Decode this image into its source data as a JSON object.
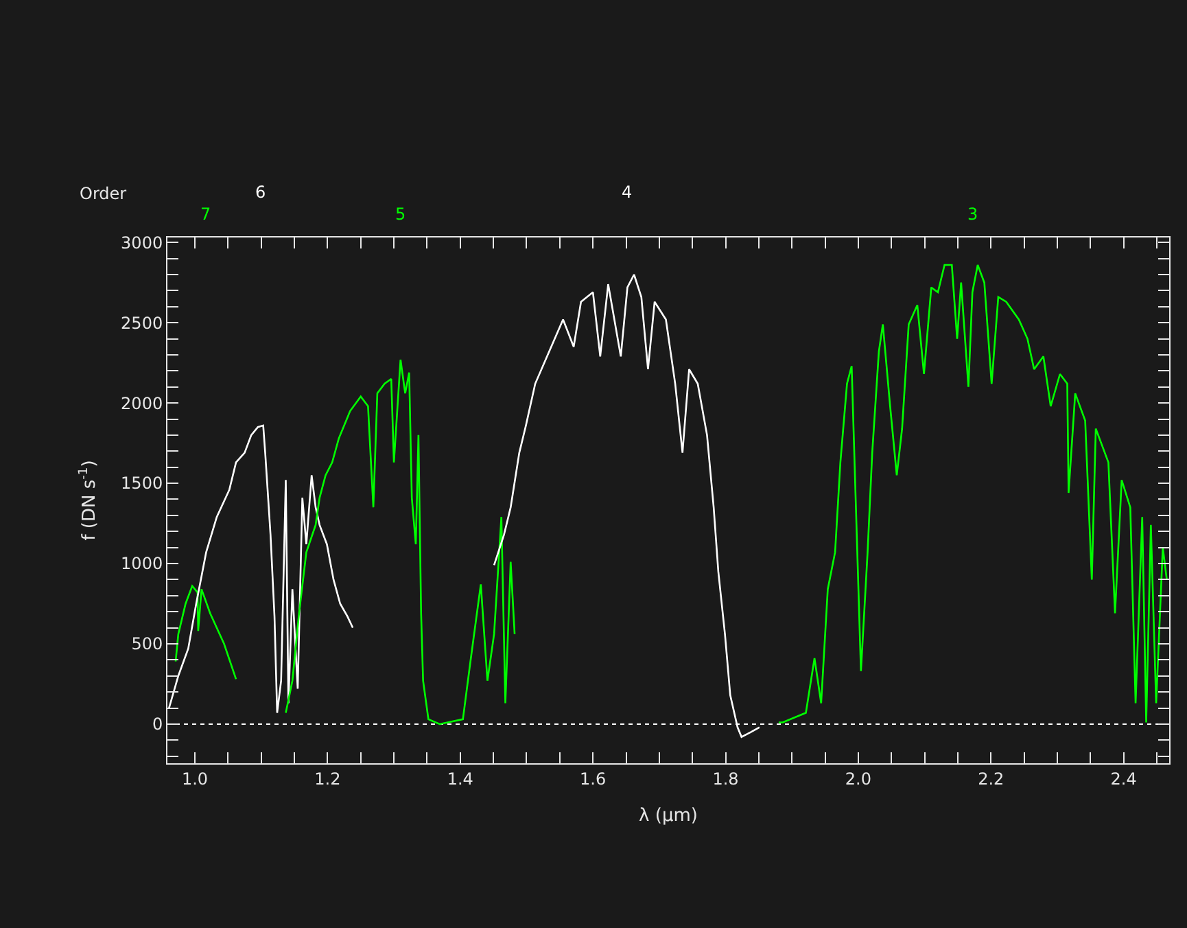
{
  "chart_data": {
    "type": "line",
    "xlabel": "λ (μm)",
    "ylabel": "f (DN s$^{-1}$)",
    "annotations": [
      "Order",
      "7",
      "6",
      "5",
      "4",
      "3"
    ],
    "series": [
      {
        "color": "#00ff00",
        "x": [
          0.971,
          0.975,
          0.986,
          0.996,
          1.004,
          1.005,
          1.01,
          1.023,
          1.044,
          1.062
        ],
        "values": [
          390,
          560,
          750,
          860,
          820,
          580,
          840,
          690,
          500,
          280
        ]
      },
      {
        "color": "#ffffff",
        "x": [
          0.961,
          0.975,
          0.99,
          1.002,
          1.017,
          1.033,
          1.052,
          1.062,
          1.075,
          1.085,
          1.095,
          1.103,
          1.106,
          1.114,
          1.12,
          1.124,
          1.13,
          1.137,
          1.141,
          1.147,
          1.155,
          1.162,
          1.168,
          1.176,
          1.182,
          1.188,
          1.199,
          1.209,
          1.219,
          1.23,
          1.238
        ],
        "values": [
          100,
          300,
          470,
          750,
          1070,
          1290,
          1460,
          1630,
          1690,
          1800,
          1850,
          1860,
          1690,
          1180,
          670,
          70,
          270,
          1520,
          130,
          840,
          220,
          1410,
          1120,
          1550,
          1350,
          1240,
          1120,
          900,
          750,
          670,
          600
        ]
      },
      {
        "color": "#00ff00",
        "x": [
          1.137,
          1.147,
          1.157,
          1.168,
          1.182,
          1.188,
          1.197,
          1.207,
          1.217,
          1.234,
          1.25,
          1.261,
          1.269,
          1.275,
          1.286,
          1.296,
          1.3,
          1.31,
          1.317,
          1.323,
          1.327,
          1.333,
          1.337,
          1.341,
          1.344,
          1.352,
          1.369,
          1.404,
          1.416,
          1.431,
          1.441,
          1.451,
          1.462,
          1.468,
          1.476,
          1.482
        ],
        "values": [
          70,
          270,
          690,
          1070,
          1240,
          1410,
          1550,
          1630,
          1780,
          1950,
          2040,
          1980,
          1350,
          2060,
          2120,
          2150,
          1630,
          2270,
          2060,
          2190,
          1410,
          1120,
          1800,
          690,
          270,
          30,
          0,
          30,
          410,
          870,
          270,
          560,
          1290,
          130,
          1010,
          560
        ]
      },
      {
        "color": "#ffffff",
        "x": [
          1.451,
          1.466,
          1.476,
          1.489,
          1.499,
          1.513,
          1.534,
          1.555,
          1.571,
          1.582,
          1.6,
          1.611,
          1.623,
          1.642,
          1.652,
          1.662,
          1.673,
          1.683,
          1.693,
          1.71,
          1.724,
          1.735,
          1.745,
          1.758,
          1.772,
          1.782,
          1.789,
          1.799,
          1.807,
          1.818,
          1.824,
          1.838,
          1.851
        ],
        "values": [
          990,
          1180,
          1350,
          1690,
          1860,
          2120,
          2320,
          2520,
          2350,
          2630,
          2690,
          2290,
          2740,
          2290,
          2720,
          2800,
          2660,
          2210,
          2630,
          2520,
          2120,
          1690,
          2210,
          2120,
          1800,
          1350,
          950,
          560,
          180,
          -20,
          -80,
          -50,
          -20
        ]
      },
      {
        "color": "#00ff00",
        "x": [
          1.88,
          1.886,
          1.921,
          1.934,
          1.944,
          1.954,
          1.965,
          1.973,
          1.983,
          1.99,
          1.996,
          2.004,
          2.014,
          2.021,
          2.031,
          2.037,
          2.048,
          2.058,
          2.066,
          2.076,
          2.089,
          2.099,
          2.11,
          2.12,
          2.13,
          2.141,
          2.149,
          2.155,
          2.166,
          2.172,
          2.18,
          2.19,
          2.201,
          2.211,
          2.223,
          2.242,
          2.255,
          2.265,
          2.279,
          2.29,
          2.304,
          2.315,
          2.317,
          2.327,
          2.342,
          2.352,
          2.358,
          2.377,
          2.387,
          2.397,
          2.41,
          2.418,
          2.428,
          2.434,
          2.441,
          2.449,
          2.459,
          2.465
        ],
        "values": [
          10,
          10,
          70,
          410,
          130,
          840,
          1070,
          1630,
          2120,
          2230,
          1410,
          330,
          1070,
          1690,
          2320,
          2490,
          1980,
          1550,
          1840,
          2490,
          2610,
          2180,
          2720,
          2690,
          2860,
          2860,
          2400,
          2750,
          2100,
          2690,
          2860,
          2750,
          2120,
          2660,
          2630,
          2520,
          2400,
          2210,
          2290,
          1980,
          2180,
          2120,
          1440,
          2060,
          1890,
          900,
          1840,
          1630,
          690,
          1520,
          1350,
          130,
          1290,
          10,
          1240,
          130,
          1100,
          900
        ]
      }
    ],
    "ref_lines": [
      {
        "axis": "y",
        "value": 0,
        "color": "#ffffff",
        "line_style": "dotted"
      }
    ],
    "xlim": [
      0.9586,
      2.4686
    ],
    "ylim": [
      -244.113,
      3030.81
    ],
    "xticks": [
      {
        "value": 1.0,
        "label": "1.0"
      },
      {
        "value": 1.05,
        "label": null
      },
      {
        "value": 1.1,
        "label": null
      },
      {
        "value": 1.15,
        "label": null
      },
      {
        "value": 1.2,
        "label": "1.2"
      },
      {
        "value": 1.25,
        "label": null
      },
      {
        "value": 1.3,
        "label": null
      },
      {
        "value": 1.35,
        "label": null
      },
      {
        "value": 1.4,
        "label": "1.4"
      },
      {
        "value": 1.45,
        "label": null
      },
      {
        "value": 1.5,
        "label": null
      },
      {
        "value": 1.55,
        "label": null
      },
      {
        "value": 1.6,
        "label": "1.6"
      },
      {
        "value": 1.65,
        "label": null
      },
      {
        "value": 1.7,
        "label": null
      },
      {
        "value": 1.75,
        "label": null
      },
      {
        "value": 1.8,
        "label": "1.8"
      },
      {
        "value": 1.85,
        "label": null
      },
      {
        "value": 1.9,
        "label": null
      },
      {
        "value": 1.95,
        "label": null
      },
      {
        "value": 2.0,
        "label": "2.0"
      },
      {
        "value": 2.05,
        "label": null
      },
      {
        "value": 2.1,
        "label": null
      },
      {
        "value": 2.15,
        "label": null
      },
      {
        "value": 2.2,
        "label": "2.2"
      },
      {
        "value": 2.25,
        "label": null
      },
      {
        "value": 2.3,
        "label": null
      },
      {
        "value": 2.35,
        "label": null
      },
      {
        "value": 2.4,
        "label": "2.4"
      },
      {
        "value": 2.45,
        "label": null
      }
    ],
    "yticks": [
      {
        "value": -200,
        "label": null
      },
      {
        "value": -100,
        "label": null
      },
      0,
      {
        "value": 100,
        "label": null
      },
      {
        "value": 200,
        "label": null
      },
      {
        "value": 300,
        "label": null
      },
      {
        "value": 400,
        "label": null
      },
      500,
      {
        "value": 600,
        "label": null
      },
      {
        "value": 700,
        "label": null
      },
      {
        "value": 800,
        "label": null
      },
      {
        "value": 900,
        "label": null
      },
      1000,
      {
        "value": 1100,
        "label": null
      },
      {
        "value": 1200,
        "label": null
      },
      {
        "value": 1300,
        "label": null
      },
      {
        "value": 1400,
        "label": null
      },
      1500,
      {
        "value": 1600,
        "label": null
      },
      {
        "value": 1700,
        "label": null
      },
      {
        "value": 1800,
        "label": null
      },
      {
        "value": 1900,
        "label": null
      },
      2000,
      {
        "value": 2100,
        "label": null
      },
      {
        "value": 2200,
        "label": null
      },
      {
        "value": 2300,
        "label": null
      },
      {
        "value": 2400,
        "label": null
      },
      2500,
      {
        "value": 2600,
        "label": null
      },
      {
        "value": 2700,
        "label": null
      },
      {
        "value": 2800,
        "label": null
      },
      {
        "value": 2900,
        "label": null
      },
      3000
    ],
    "grid": false,
    "marker": "none",
    "line_style": "solid"
  }
}
